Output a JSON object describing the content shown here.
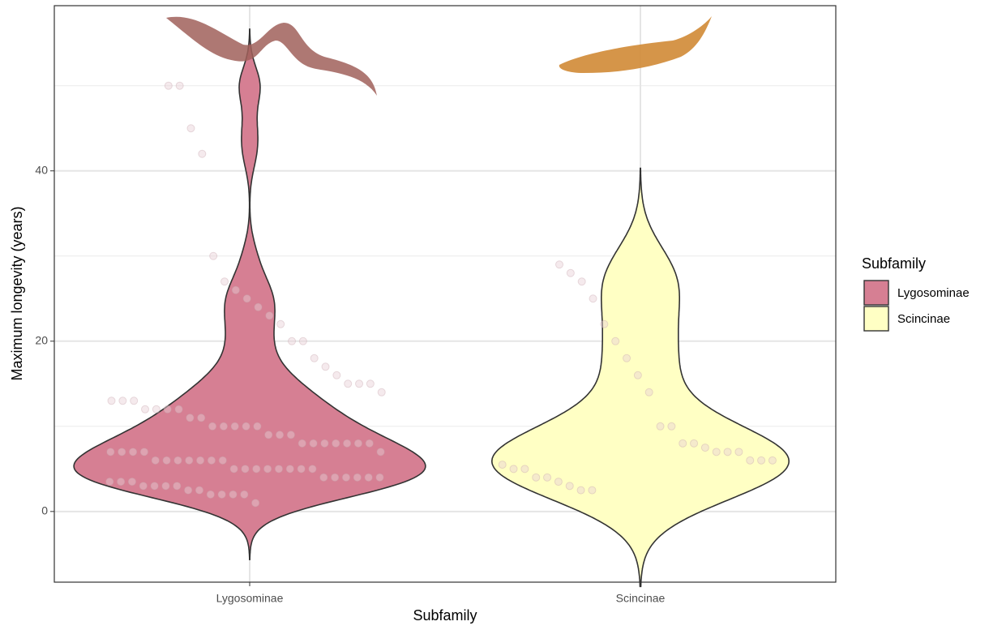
{
  "chart_data": {
    "type": "violin",
    "x_label": "Subfamily",
    "y_label": "Maximum longevity (years)",
    "legend_title": "Subfamily",
    "ylim": [
      -8.3,
      59.4
    ],
    "yticks": [
      0,
      20,
      40
    ],
    "yminor_ticks": [
      10,
      30,
      50
    ],
    "grid": true,
    "series": [
      {
        "name": "Lygosominae",
        "color": "#d67f93",
        "values": [
          50,
          50,
          45,
          42,
          30,
          27,
          26,
          25,
          24,
          23,
          22,
          20,
          20,
          18,
          17,
          16,
          15,
          15,
          15,
          14,
          13,
          13,
          13,
          12,
          12,
          12,
          12,
          11,
          11,
          10,
          10,
          10,
          10,
          10,
          9,
          9,
          9,
          8,
          8,
          8,
          8,
          8,
          8,
          8,
          7,
          7,
          7,
          7,
          7,
          6,
          6,
          6,
          6,
          6,
          6,
          6,
          5,
          5,
          5,
          5,
          5,
          5,
          5,
          5,
          4,
          4,
          4,
          4,
          4,
          4,
          3.5,
          3.5,
          3.5,
          3,
          3,
          3,
          3,
          2.5,
          2.5,
          2,
          2,
          2,
          2,
          1
        ]
      },
      {
        "name": "Scincinae",
        "color": "#ffffc4",
        "values": [
          29,
          28,
          27,
          25,
          22,
          20,
          18,
          16,
          14,
          10,
          10,
          8,
          8,
          7.5,
          7,
          7,
          7,
          6,
          6,
          6,
          5.5,
          5,
          5,
          4,
          4,
          3.5,
          3,
          2.5,
          2.5
        ]
      }
    ]
  }
}
